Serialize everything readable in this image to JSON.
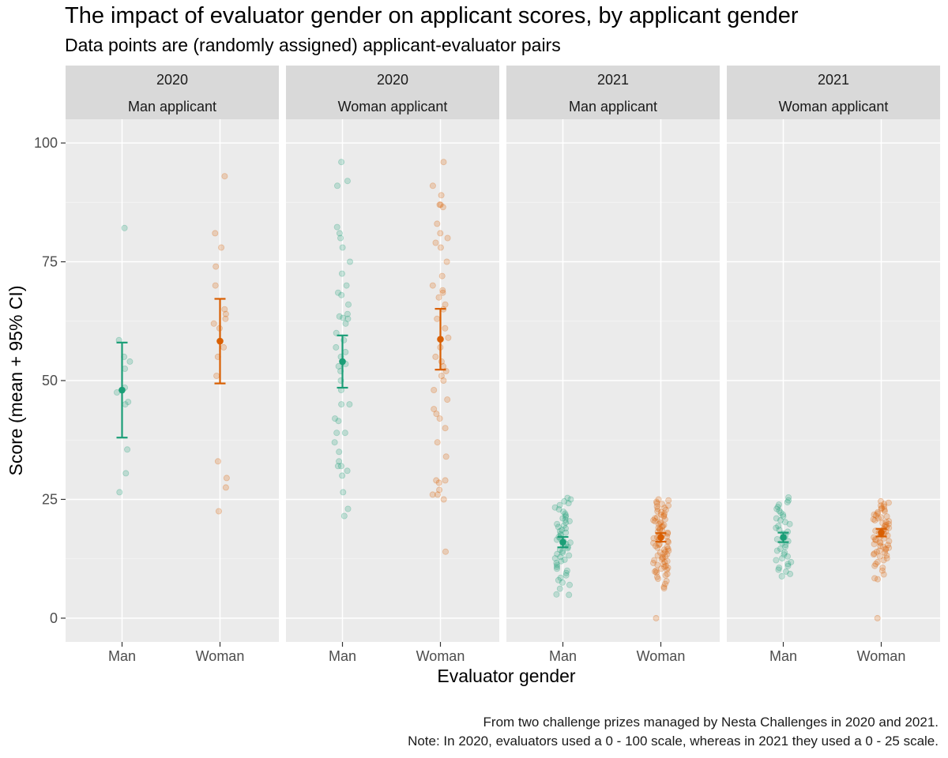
{
  "chart_data": {
    "type": "scatter",
    "title": "The impact of evaluator gender on applicant scores, by applicant gender",
    "subtitle": "Data points are (randomly assigned) applicant-evaluator pairs",
    "xlabel": "Evaluator gender",
    "ylabel": "Score (mean + 95% CI)",
    "ylim": [
      -5,
      105
    ],
    "yticks": [
      0,
      25,
      50,
      75,
      100
    ],
    "categories": [
      "Man",
      "Woman"
    ],
    "grid": true,
    "colors": {
      "Man": "#1b9e77",
      "Woman": "#d95f02"
    },
    "captions": [
      "From two challenge prizes managed by Nesta Challenges in 2020 and 2021.",
      "Note: In 2020, evaluators used a 0 - 100 scale, whereas in 2021 they used a 0 - 25 scale."
    ],
    "panels": [
      {
        "year": "2020",
        "applicant": "Man applicant",
        "groups": [
          {
            "evaluator": "Man",
            "mean": 48,
            "ci": [
              38,
              58
            ],
            "points": [
              82.1,
              58.5,
              55,
              54,
              52.5,
              48.5,
              47.5,
              45.5,
              45,
              35.5,
              30.5,
              26.5
            ]
          },
          {
            "evaluator": "Woman",
            "mean": 58.3,
            "ci": [
              49.4,
              67.2
            ],
            "points": [
              93,
              81,
              78,
              74,
              70,
              65,
              64,
              63,
              62,
              61,
              57,
              55,
              51,
              33,
              29.5,
              27.5,
              22.5
            ]
          }
        ]
      },
      {
        "year": "2020",
        "applicant": "Woman applicant",
        "groups": [
          {
            "evaluator": "Man",
            "mean": 54,
            "ci": [
              48.5,
              59.5
            ],
            "points": [
              96,
              92,
              91,
              82.3,
              81,
              80,
              78,
              75,
              72.5,
              70,
              68.5,
              68,
              66,
              64,
              63.5,
              63.2,
              63,
              62,
              60,
              58.5,
              57,
              56,
              55,
              53.5,
              53,
              52,
              50,
              48,
              45,
              45,
              42,
              41.5,
              39,
              39,
              37,
              35,
              33,
              32,
              32,
              31,
              30,
              26.5,
              23,
              21.5
            ]
          },
          {
            "evaluator": "Woman",
            "mean": 58.7,
            "ci": [
              52.3,
              65.1
            ],
            "points": [
              96,
              91,
              89,
              87,
              87,
              86.5,
              83,
              81,
              80,
              79,
              78,
              75,
              72,
              70,
              69,
              68.5,
              67.5,
              66,
              65,
              63,
              61,
              59,
              57,
              55,
              54,
              53,
              52,
              51,
              50,
              48,
              46,
              44,
              43,
              42,
              40,
              37,
              34,
              29,
              29,
              28.5,
              27,
              26,
              26,
              25,
              14
            ]
          }
        ]
      },
      {
        "year": "2021",
        "applicant": "Man applicant",
        "groups": [
          {
            "evaluator": "Man",
            "mean": 16,
            "ci": [
              14.9,
              17.1
            ],
            "points": [
              25.3,
              25,
              24.6,
              24.2,
              23.8,
              23.3,
              22.9,
              22.4,
              22,
              21.6,
              21.3,
              21,
              20.7,
              20.4,
              20.1,
              19.8,
              19.5,
              19.2,
              18.9,
              18.6,
              18.3,
              18,
              17.7,
              17.4,
              17.1,
              16.8,
              16.5,
              16.2,
              15.9,
              15.6,
              15.3,
              15,
              14.7,
              14.4,
              14.1,
              13.8,
              13.5,
              13.2,
              12.9,
              12.6,
              12.3,
              12,
              11.6,
              11.2,
              10.8,
              10.4,
              10,
              9.5,
              9,
              8.5,
              8,
              7.5,
              7,
              6.2,
              5,
              4.9
            ]
          },
          {
            "evaluator": "Woman",
            "mean": 17,
            "ci": [
              16.1,
              17.9
            ],
            "points": [
              25,
              24.8,
              24.5,
              24.2,
              24,
              23.7,
              23.5,
              23.2,
              23,
              22.8,
              22.5,
              22.3,
              22,
              21.8,
              21.6,
              21.4,
              21.2,
              21,
              20.8,
              20.6,
              20.4,
              20.2,
              20,
              19.8,
              19.6,
              19.4,
              19.2,
              19,
              18.8,
              18.6,
              18.4,
              18.2,
              18,
              17.8,
              17.6,
              17.4,
              17.2,
              17,
              16.8,
              16.6,
              16.4,
              16.2,
              16,
              15.8,
              15.6,
              15.4,
              15.2,
              15,
              14.8,
              14.6,
              14.4,
              14.2,
              14,
              13.8,
              13.6,
              13.4,
              13.2,
              13,
              12.8,
              12.6,
              12.4,
              12.2,
              12,
              11.8,
              11.6,
              11.4,
              11.2,
              11,
              10.8,
              10.6,
              10.4,
              10.2,
              10,
              9.8,
              9.6,
              9.3,
              9,
              8.7,
              8.3,
              7.8,
              7.2,
              6.6,
              6.3,
              0
            ]
          }
        ]
      },
      {
        "year": "2021",
        "applicant": "Woman applicant",
        "groups": [
          {
            "evaluator": "Man",
            "mean": 17,
            "ci": [
              16,
              18
            ],
            "points": [
              25.4,
              24.8,
              24.4,
              23.9,
              23.4,
              23,
              22.6,
              22.2,
              21.8,
              21.4,
              21,
              20.6,
              20.2,
              19.8,
              19.4,
              19,
              18.6,
              18.2,
              17.8,
              17.4,
              17,
              16.6,
              16.2,
              15.8,
              15.4,
              15,
              14.6,
              14.2,
              13.8,
              13.4,
              13,
              12.6,
              12.2,
              11.8,
              11.4,
              11,
              10.6,
              10.2,
              9.8,
              9.3,
              8.8
            ]
          },
          {
            "evaluator": "Woman",
            "mean": 18,
            "ci": [
              17.2,
              18.8
            ],
            "points": [
              24.6,
              24.3,
              24,
              23.7,
              23.5,
              23.2,
              23,
              22.8,
              22.5,
              22.3,
              22,
              21.8,
              21.6,
              21.4,
              21.2,
              21,
              20.8,
              20.6,
              20.4,
              20.2,
              20,
              19.8,
              19.6,
              19.4,
              19.2,
              19,
              18.8,
              18.6,
              18.4,
              18.2,
              18,
              17.8,
              17.6,
              17.4,
              17.2,
              17,
              16.8,
              16.6,
              16.4,
              16.2,
              16,
              15.8,
              15.6,
              15.4,
              15.2,
              15,
              14.8,
              14.6,
              14.4,
              14.2,
              14,
              13.8,
              13.6,
              13.4,
              13.2,
              13,
              12.6,
              12.2,
              11.8,
              11.4,
              11,
              10.6,
              10,
              9.2,
              8.4,
              8.2,
              0
            ]
          }
        ]
      }
    ]
  }
}
